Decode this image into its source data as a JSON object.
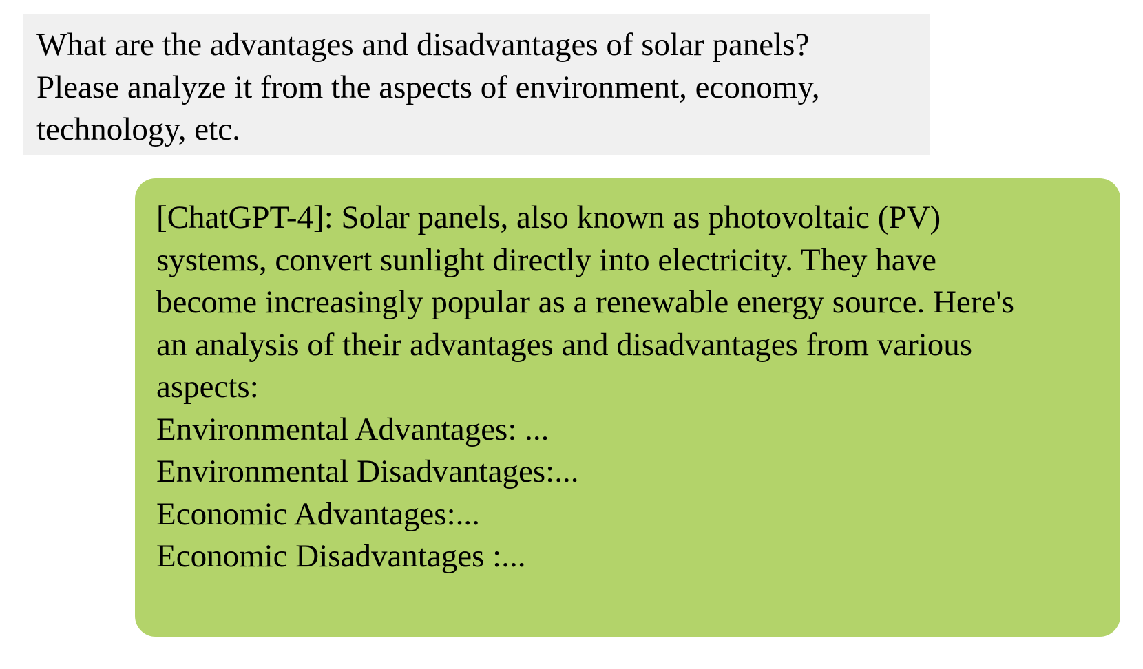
{
  "conversation": {
    "user_message": {
      "lines": [
        "What are the advantages and disadvantages of solar panels?",
        "Please analyze it from the aspects of environment, economy,",
        "technology, etc."
      ]
    },
    "assistant_message": {
      "lines": [
        "[ChatGPT-4]: Solar panels, also known as photovoltaic (PV)",
        "systems, convert sunlight directly into electricity. They have",
        "become increasingly popular as a renewable energy source. Here's",
        "an analysis of their advantages and disadvantages from various",
        "aspects:",
        "Environmental Advantages: ...",
        "Environmental Disadvantages:...",
        "Economic Advantages:...",
        "Economic Disadvantages :..."
      ]
    }
  },
  "colors": {
    "user_bubble_bg": "#f0f0f0",
    "assistant_bubble_bg": "#b3d36a"
  }
}
